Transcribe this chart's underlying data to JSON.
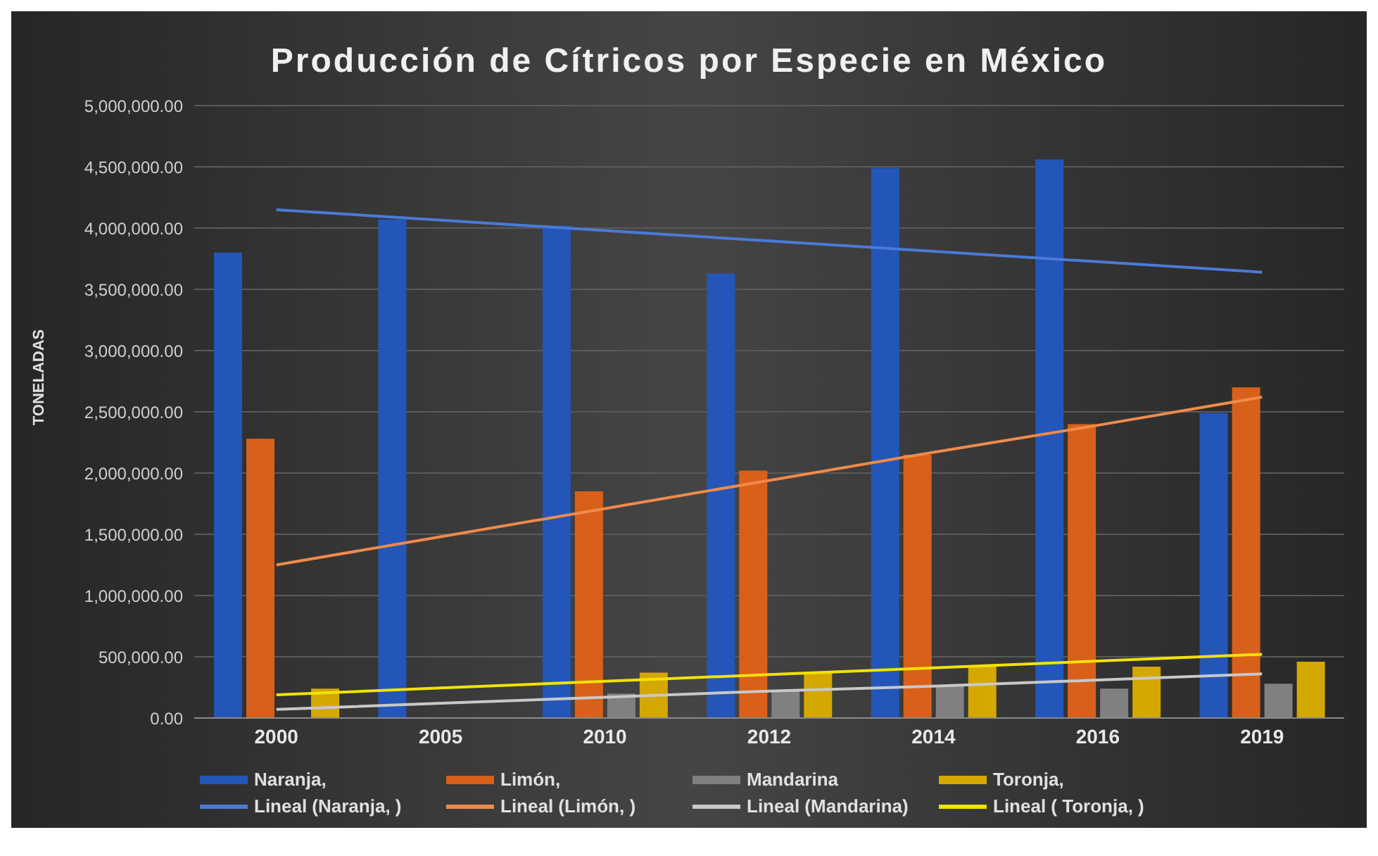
{
  "chart_data": {
    "type": "bar",
    "title": "Producción de Cítricos por Especie en México",
    "ylabel": "TONELADAS",
    "categories": [
      "2000",
      "2005",
      "2010",
      "2012",
      "2014",
      "2016",
      "2019"
    ],
    "series": [
      {
        "name": "Naranja,",
        "color": "#2356b8",
        "values": [
          3800000,
          4070000,
          4020000,
          3630000,
          4490000,
          4560000,
          2490000
        ]
      },
      {
        "name": "Limón,",
        "color": "#d9601a",
        "values": [
          2280000,
          null,
          1850000,
          2020000,
          2150000,
          2400000,
          2700000
        ]
      },
      {
        "name": "Mandarina",
        "color": "#808080",
        "values": [
          null,
          null,
          200000,
          220000,
          260000,
          240000,
          280000
        ]
      },
      {
        "name": "Toronja,",
        "color": "#d4a800",
        "values": [
          240000,
          null,
          370000,
          370000,
          420000,
          420000,
          460000
        ]
      },
      {
        "name": "Lineal (Naranja, )",
        "type": "line",
        "color": "#4a7ad8",
        "values": [
          4150000,
          4065000,
          3980000,
          3895000,
          3810000,
          3725000,
          3640000
        ]
      },
      {
        "name": "Lineal (Limón, )",
        "type": "line",
        "color": "#f08a4a",
        "values": [
          1250000,
          1480000,
          1710000,
          1940000,
          2170000,
          2390000,
          2620000
        ]
      },
      {
        "name": "Lineal (Mandarina)",
        "type": "line",
        "color": "#c8c8c8",
        "values": [
          70000,
          120000,
          170000,
          220000,
          260000,
          310000,
          360000
        ]
      },
      {
        "name": "Lineal ( Toronja, )",
        "type": "line",
        "color": "#f2e200",
        "values": [
          190000,
          245000,
          300000,
          355000,
          410000,
          465000,
          520000
        ]
      }
    ],
    "ylim": [
      0,
      5000000
    ],
    "yticks": [
      {
        "value": 0,
        "label": "0.00"
      },
      {
        "value": 500000,
        "label": "500,000.00"
      },
      {
        "value": 1000000,
        "label": "1,000,000.00"
      },
      {
        "value": 1500000,
        "label": "1,500,000.00"
      },
      {
        "value": 2000000,
        "label": "2,000,000.00"
      },
      {
        "value": 2500000,
        "label": "2,500,000.00"
      },
      {
        "value": 3000000,
        "label": "3,000,000.00"
      },
      {
        "value": 3500000,
        "label": "3,500,000.00"
      },
      {
        "value": 4000000,
        "label": "4,000,000.00"
      },
      {
        "value": 4500000,
        "label": "4,500,000.00"
      },
      {
        "value": 5000000,
        "label": "5,000,000.00"
      }
    ],
    "grid": "y",
    "legend": "bottom"
  }
}
